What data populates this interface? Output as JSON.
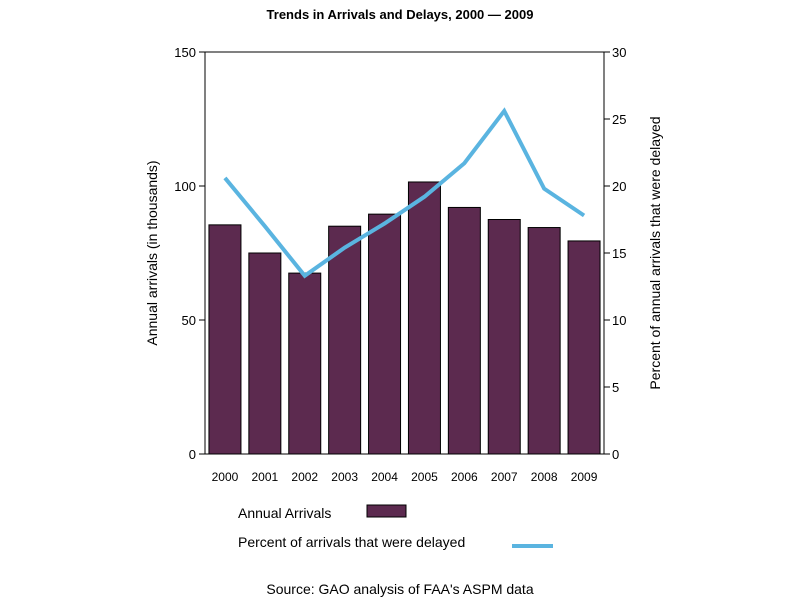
{
  "chart_data": {
    "type": "bar",
    "title": "Trends in Arrivals and Delays, 2000 — 2009",
    "categories": [
      "2000",
      "2001",
      "2002",
      "2003",
      "2004",
      "2005",
      "2006",
      "2007",
      "2008",
      "2009"
    ],
    "series": [
      {
        "name": "Annual Arrivals",
        "type": "bar",
        "axis": "left",
        "color": "#5c2a4f",
        "values": [
          85.5,
          75,
          67.5,
          85,
          89.5,
          101.5,
          92,
          87.5,
          84.5,
          79.5
        ]
      },
      {
        "name": "Percent of arrivals that were delayed",
        "type": "line",
        "axis": "right",
        "color": "#5ab4e0",
        "values": [
          20.6,
          17.0,
          13.3,
          15.4,
          17.2,
          19.2,
          21.7,
          25.6,
          19.8,
          17.8
        ]
      }
    ],
    "ylabel": "Annual arrivals (in thousands)",
    "ylabel_right": "Percent of annual arrivals that were delayed",
    "xlabel": "",
    "ylim": [
      0,
      150
    ],
    "ylim_right": [
      0,
      30
    ],
    "yticks": [
      0,
      50,
      100,
      150
    ],
    "yticks_right": [
      0,
      5,
      10,
      15,
      20,
      25,
      30
    ],
    "grid": false,
    "legend": {
      "placement": "bottom",
      "entries": [
        {
          "label": "Annual Arrivals",
          "kind": "bar"
        },
        {
          "label": "Percent of arrivals that were delayed",
          "kind": "line"
        }
      ]
    },
    "source": "Source: GAO analysis of FAA's ASPM data"
  }
}
